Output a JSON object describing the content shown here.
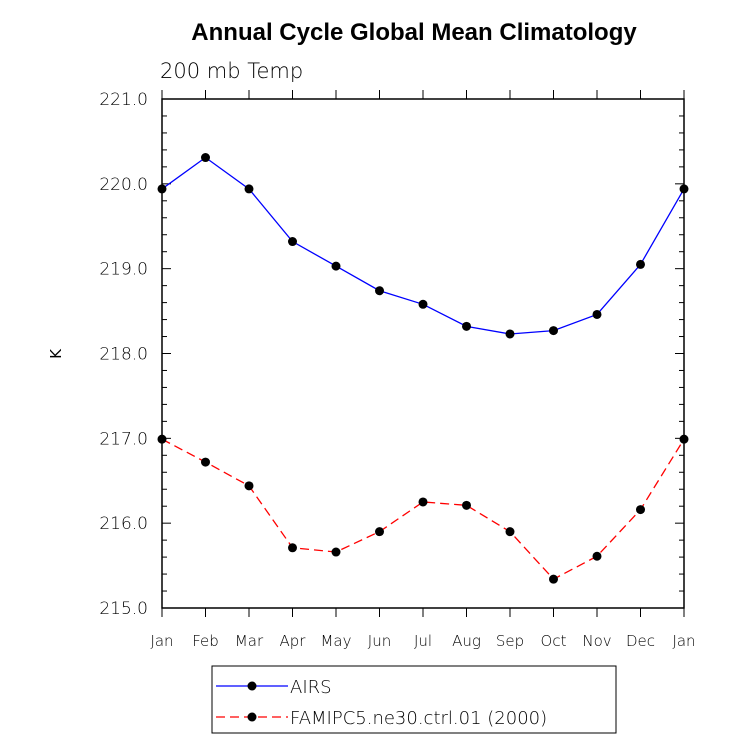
{
  "chart_data": {
    "type": "line",
    "title": "Annual Cycle Global Mean Climatology",
    "subtitle": "200 mb Temp",
    "xlabel": "",
    "ylabel": "K",
    "categories": [
      "Jan",
      "Feb",
      "Mar",
      "Apr",
      "May",
      "Jun",
      "Jul",
      "Aug",
      "Sep",
      "Oct",
      "Nov",
      "Dec",
      "Jan"
    ],
    "ylim": [
      215.0,
      221.0
    ],
    "yticks": [
      "215.0",
      "216.0",
      "217.0",
      "218.0",
      "219.0",
      "220.0",
      "221.0"
    ],
    "grid": false,
    "legend_position": "bottom",
    "series": [
      {
        "name": "AIRS",
        "color": "#0000ff",
        "dash": "solid",
        "values": [
          219.94,
          220.31,
          219.94,
          219.32,
          219.03,
          218.74,
          218.58,
          218.32,
          218.23,
          218.27,
          218.46,
          219.05,
          219.94
        ]
      },
      {
        "name": "FAMIPC5.ne30.ctrl.01 (2000)",
        "color": "#ff0000",
        "dash": "dashed",
        "values": [
          216.99,
          216.72,
          216.44,
          215.71,
          215.66,
          215.9,
          216.25,
          216.21,
          215.9,
          215.34,
          215.61,
          216.16,
          216.99
        ]
      }
    ]
  }
}
